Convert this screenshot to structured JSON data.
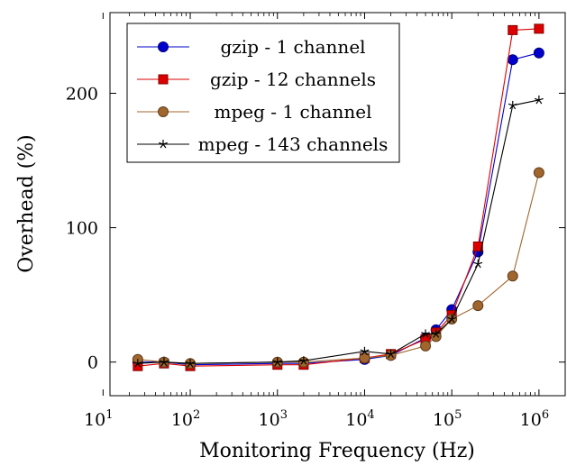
{
  "chart_data": {
    "type": "line",
    "xlabel": "Monitoring Frequency (Hz)",
    "ylabel": "Overhead (%)",
    "xscale": "log",
    "xlim": [
      12,
      2000000
    ],
    "ylim": [
      -25,
      260
    ],
    "x_ticks": [
      {
        "value": 10,
        "base": "10",
        "exp": "1"
      },
      {
        "value": 100,
        "base": "10",
        "exp": "2"
      },
      {
        "value": 1000,
        "base": "10",
        "exp": "3"
      },
      {
        "value": 10000,
        "base": "10",
        "exp": "4"
      },
      {
        "value": 100000,
        "base": "10",
        "exp": "5"
      },
      {
        "value": 1000000,
        "base": "10",
        "exp": "6"
      }
    ],
    "y_ticks": [
      {
        "value": 0,
        "label": "0"
      },
      {
        "value": 100,
        "label": "100"
      },
      {
        "value": 200,
        "label": "200"
      }
    ],
    "grid": false,
    "legend_position": "top-left",
    "series": [
      {
        "name": "gzip - 1 channel",
        "color": "#0000cc",
        "marker": "circle",
        "x": [
          25,
          50,
          100,
          1000,
          2000,
          10000,
          20000,
          50000,
          66000,
          100000,
          200000,
          500000,
          1000000
        ],
        "y": [
          0,
          0,
          -2,
          -1,
          -1,
          2,
          5,
          18,
          24,
          39,
          82,
          225,
          230
        ]
      },
      {
        "name": "gzip - 12 channels",
        "color": "#dd0000",
        "marker": "square",
        "x": [
          25,
          50,
          100,
          1000,
          2000,
          10000,
          20000,
          50000,
          66000,
          100000,
          200000,
          500000,
          1000000
        ],
        "y": [
          -3,
          -1,
          -3,
          -2,
          -2,
          3,
          6,
          17,
          22,
          35,
          86,
          247,
          248
        ]
      },
      {
        "name": "mpeg - 1 channel",
        "color": "#a0662e",
        "marker": "circle",
        "x": [
          25,
          50,
          100,
          1000,
          2000,
          10000,
          20000,
          50000,
          66000,
          100000,
          200000,
          500000,
          1000000
        ],
        "y": [
          2,
          0,
          -1,
          0,
          0,
          3,
          5,
          12,
          19,
          32,
          42,
          64,
          141
        ]
      },
      {
        "name": "mpeg - 143 channels",
        "color": "#000000",
        "marker": "star",
        "x": [
          25,
          50,
          100,
          1000,
          2000,
          10000,
          20000,
          50000,
          66000,
          100000,
          200000,
          500000,
          1000000
        ],
        "y": [
          -1,
          0,
          -1,
          0,
          1,
          8,
          6,
          21,
          21,
          32,
          73,
          191,
          195
        ]
      }
    ]
  }
}
